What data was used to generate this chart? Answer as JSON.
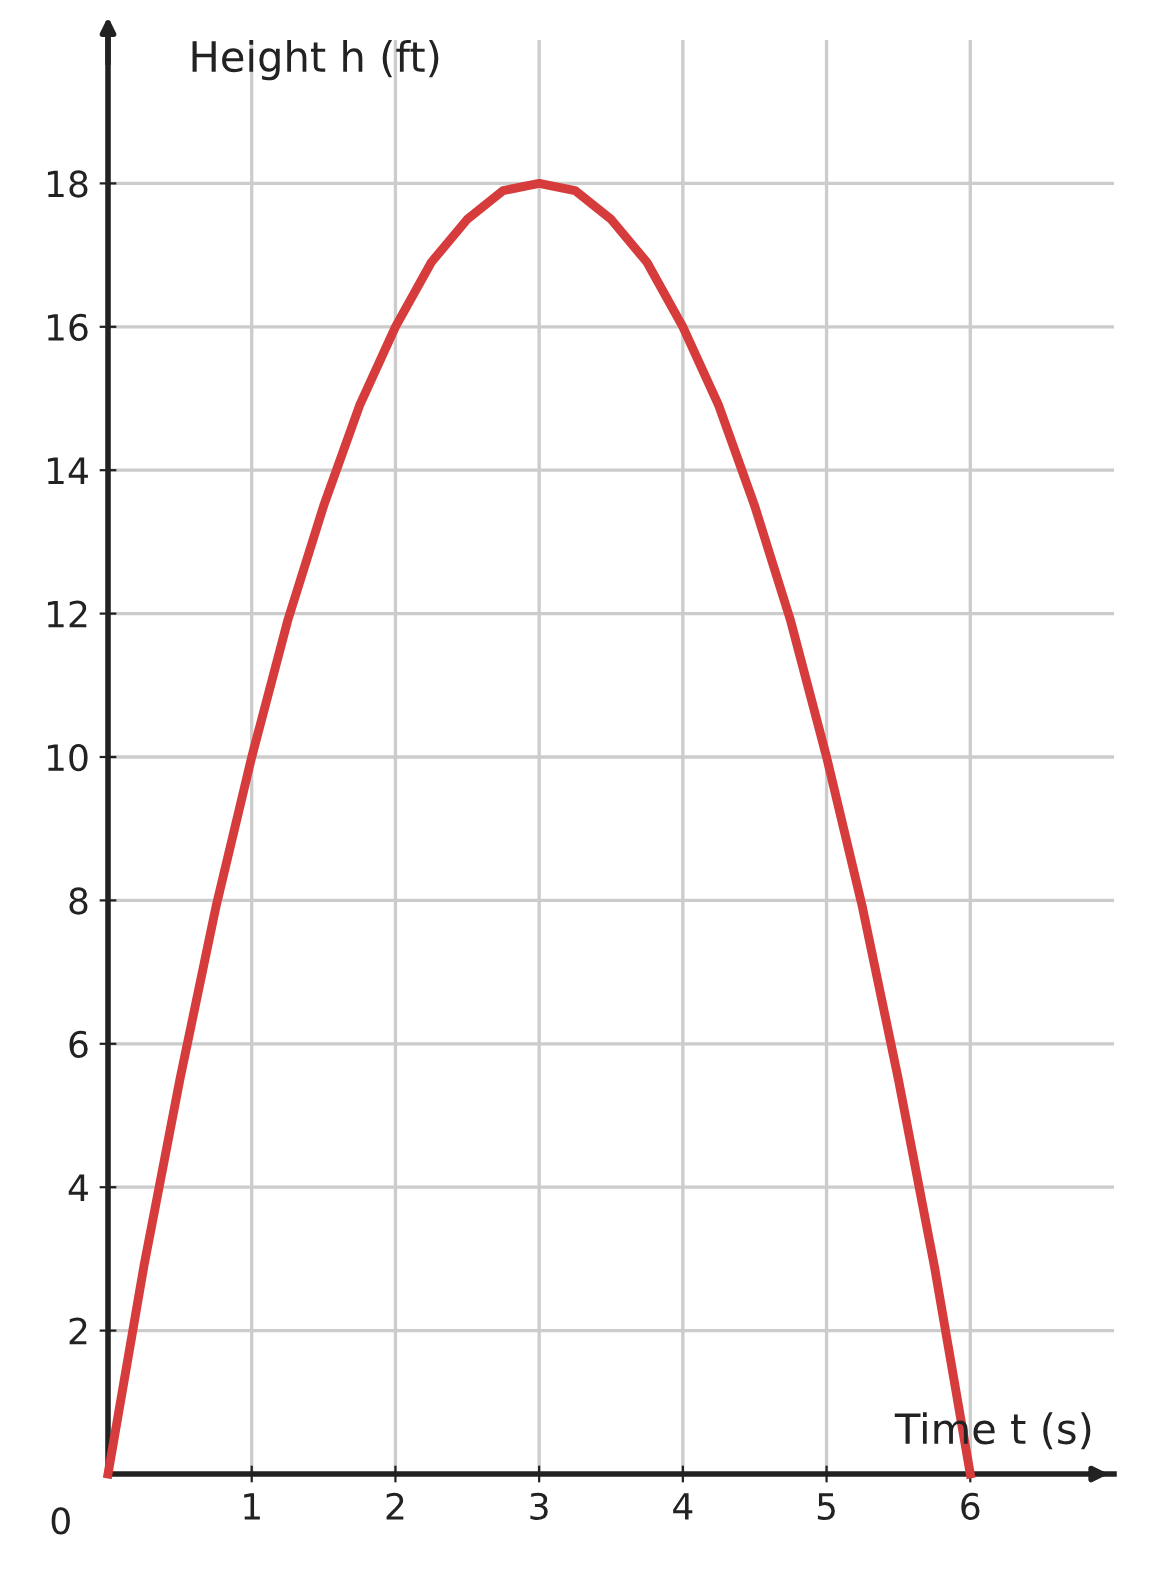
{
  "chart_data": {
    "type": "line",
    "xlabel": "Time t (s)",
    "ylabel": "Height h (ft)",
    "x": [
      0,
      0.25,
      0.5,
      0.75,
      1,
      1.25,
      1.5,
      1.75,
      2,
      2.25,
      2.5,
      2.75,
      3,
      3.25,
      3.5,
      3.75,
      4,
      4.25,
      4.5,
      4.75,
      5,
      5.25,
      5.5,
      5.75,
      6
    ],
    "series": [
      {
        "color": "#d63c3c",
        "values": [
          0,
          2.9,
          5.5,
          7.9,
          10,
          11.9,
          13.5,
          14.9,
          16,
          16.9,
          17.5,
          17.9,
          18,
          17.9,
          17.5,
          16.9,
          16,
          14.9,
          13.5,
          11.9,
          10,
          7.9,
          5.5,
          2.9,
          0
        ]
      }
    ],
    "xlim": [
      0,
      7
    ],
    "ylim": [
      0,
      20
    ],
    "xticks": [
      1,
      2,
      3,
      4,
      5,
      6
    ],
    "yticks": [
      2,
      4,
      6,
      8,
      10,
      12,
      14,
      16,
      18
    ],
    "annotations": [
      {
        "text": "0",
        "x": 0,
        "y": 0
      }
    ],
    "grid": true,
    "marker": "none",
    "line_style": "solid"
  }
}
